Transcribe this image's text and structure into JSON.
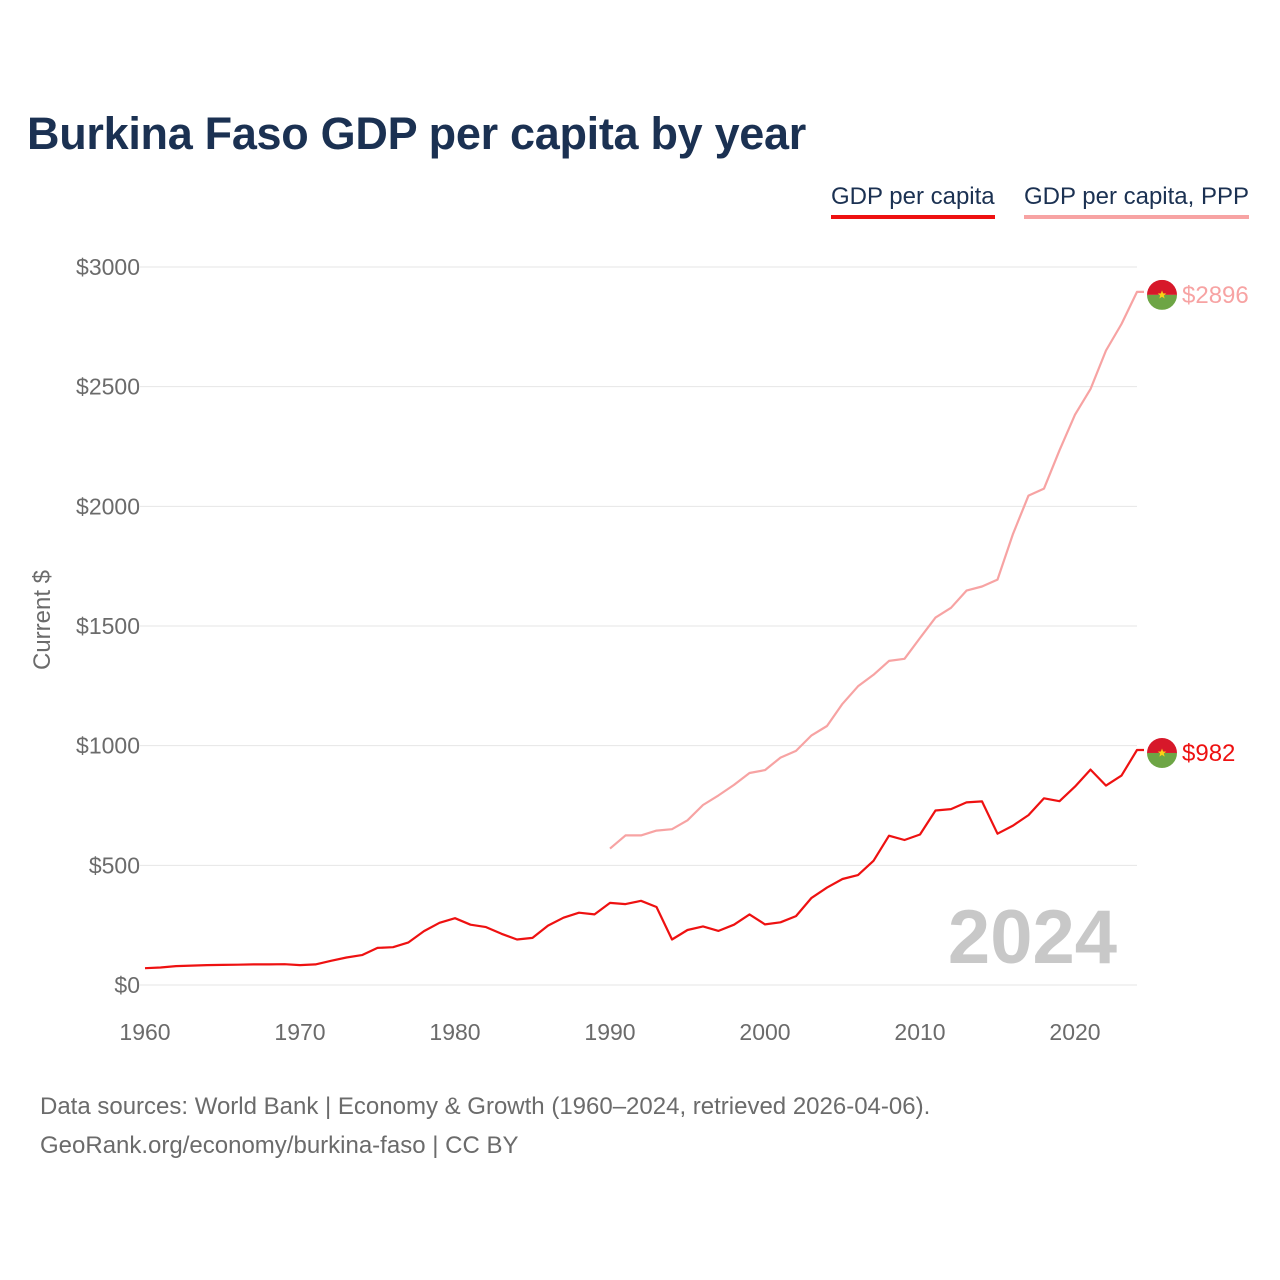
{
  "title": "Burkina Faso GDP per capita by year",
  "legend": [
    {
      "label": "GDP per capita",
      "color": "#ee1111"
    },
    {
      "label": "GDP per capita, PPP",
      "color": "#f7a3a3"
    }
  ],
  "source": {
    "line1": "Data sources: World Bank | Economy & Growth (1960–2024, retrieved 2026-04-06).",
    "line2": "GeoRank.org/economy/burkina-faso | CC BY"
  },
  "chart_data": {
    "type": "line",
    "title": "Burkina Faso GDP per capita by year",
    "ylabel": "Current $",
    "xlabel": "",
    "xlim": [
      1960,
      2024
    ],
    "ylim": [
      0,
      3000
    ],
    "grid": true,
    "legend_position": "top-right",
    "watermark_year": "2024",
    "y_ticks": [
      {
        "value": 0,
        "label": "$0"
      },
      {
        "value": 500,
        "label": "$500"
      },
      {
        "value": 1000,
        "label": "$1000"
      },
      {
        "value": 1500,
        "label": "$1500"
      },
      {
        "value": 2000,
        "label": "$2000"
      },
      {
        "value": 2500,
        "label": "$2500"
      },
      {
        "value": 3000,
        "label": "$3000"
      }
    ],
    "x_ticks": [
      {
        "value": 1960,
        "label": "1960"
      },
      {
        "value": 1970,
        "label": "1970"
      },
      {
        "value": 1980,
        "label": "1980"
      },
      {
        "value": 1990,
        "label": "1990"
      },
      {
        "value": 2000,
        "label": "2000"
      },
      {
        "value": 2010,
        "label": "2010"
      },
      {
        "value": 2020,
        "label": "2020"
      }
    ],
    "series": [
      {
        "name": "GDP per capita",
        "color": "#ee1111",
        "end_label": "$982",
        "x": [
          1960,
          1961,
          1962,
          1963,
          1964,
          1965,
          1966,
          1967,
          1968,
          1969,
          1970,
          1971,
          1972,
          1973,
          1974,
          1975,
          1976,
          1977,
          1978,
          1979,
          1980,
          1981,
          1982,
          1983,
          1984,
          1985,
          1986,
          1987,
          1988,
          1989,
          1990,
          1991,
          1992,
          1993,
          1994,
          1995,
          1996,
          1997,
          1998,
          1999,
          2000,
          2001,
          2002,
          2003,
          2004,
          2005,
          2006,
          2007,
          2008,
          2009,
          2010,
          2011,
          2012,
          2013,
          2014,
          2015,
          2016,
          2017,
          2018,
          2019,
          2020,
          2021,
          2022,
          2023,
          2024
        ],
        "values": [
          70,
          73,
          79,
          81,
          83,
          84,
          85,
          86,
          86,
          87,
          83,
          86,
          101,
          115,
          125,
          155,
          158,
          178,
          225,
          260,
          279,
          252,
          242,
          214,
          190,
          197,
          248,
          281,
          302,
          295,
          343,
          338,
          352,
          326,
          190,
          230,
          245,
          226,
          252,
          295,
          253,
          262,
          288,
          364,
          407,
          443,
          459,
          519,
          624,
          606,
          629,
          729,
          735,
          763,
          767,
          632,
          666,
          710,
          780,
          768,
          829,
          900,
          833,
          875,
          982
        ]
      },
      {
        "name": "GDP per capita, PPP",
        "color": "#f7a3a3",
        "end_label": "$2896",
        "x": [
          1990,
          1991,
          1992,
          1993,
          1994,
          1995,
          1996,
          1997,
          1998,
          1999,
          2000,
          2001,
          2002,
          2003,
          2004,
          2005,
          2006,
          2007,
          2008,
          2009,
          2010,
          2011,
          2012,
          2013,
          2014,
          2015,
          2016,
          2017,
          2018,
          2019,
          2020,
          2021,
          2022,
          2023,
          2024
        ],
        "values": [
          570,
          625,
          625,
          645,
          651,
          688,
          752,
          792,
          836,
          886,
          898,
          950,
          978,
          1043,
          1082,
          1175,
          1248,
          1296,
          1354,
          1363,
          1450,
          1535,
          1576,
          1648,
          1665,
          1694,
          1885,
          2045,
          2074,
          2234,
          2383,
          2490,
          2651,
          2762,
          2896
        ]
      }
    ]
  }
}
